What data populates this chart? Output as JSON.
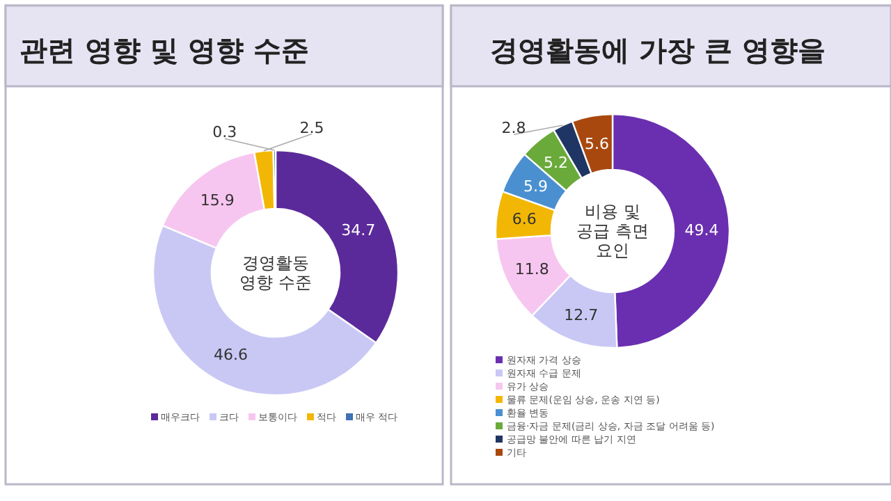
{
  "chart_data": [
    {
      "type": "donut",
      "title": "관련 영향 및 영향 수준",
      "annotations": [
        "경영활동 영향 수준"
      ],
      "categories": [
        "매우크다",
        "크다",
        "보통이다",
        "적다",
        "매우 적다"
      ],
      "values": [
        34.7,
        46.6,
        15.9,
        2.5,
        0.3
      ],
      "colors": [
        "#5b2a9a",
        "#c9c8f5",
        "#f7c6f0",
        "#f2b705",
        "#3f72b5"
      ],
      "data_labels": true,
      "legend": "bottom"
    },
    {
      "type": "donut",
      "title": "경영활동에 가장 큰 영향을",
      "annotations": [
        "비용 및 공급 측면 요인"
      ],
      "categories": [
        "원자재 가격 상승",
        "원자재 수급 문제",
        "유가 상승",
        "물류 문제(운임 상승, 운송 지연 등)",
        "환율 변동",
        "금융·자금 문제(금리 상승, 자금 조달 어려움 등)",
        "공급망 불안에 따른 납기 지연",
        "기타"
      ],
      "values": [
        49.4,
        12.7,
        11.8,
        6.6,
        5.9,
        5.2,
        2.8,
        5.6
      ],
      "colors": [
        "#6a2fb0",
        "#c9c8f5",
        "#f7c6f0",
        "#f2b705",
        "#4a90d0",
        "#6aaa3a",
        "#1f3563",
        "#a8480f"
      ],
      "data_labels": true,
      "legend": "bottom"
    }
  ]
}
